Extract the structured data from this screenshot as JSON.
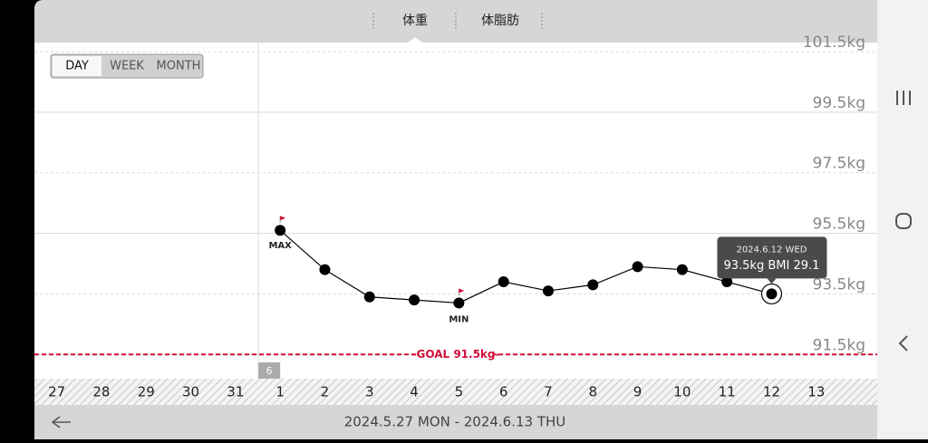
{
  "tabs": [
    "体重",
    "体脂肪"
  ],
  "range_buttons": [
    "DAY",
    "WEEK",
    "MONTH"
  ],
  "footer": {
    "date_range": "2024.5.27 MON - 2024.6.13 THU"
  },
  "chart_data": {
    "type": "line",
    "categories": [
      "27",
      "28",
      "29",
      "30",
      "31",
      "1",
      "2",
      "3",
      "4",
      "5",
      "6",
      "7",
      "8",
      "9",
      "10",
      "11",
      "12",
      "13"
    ],
    "values": [
      null,
      null,
      null,
      null,
      null,
      95.6,
      94.3,
      93.4,
      93.3,
      93.2,
      93.9,
      93.6,
      93.8,
      94.4,
      94.3,
      93.9,
      93.5,
      null
    ],
    "color": "#000000",
    "ylim": [
      90.7,
      101.8
    ],
    "yticks": [
      {
        "value": 91.5,
        "label": "91.5kg"
      },
      {
        "value": 93.5,
        "label": "93.5kg"
      },
      {
        "value": 95.5,
        "label": "95.5kg"
      },
      {
        "value": 97.5,
        "label": "97.5kg"
      },
      {
        "value": 99.5,
        "label": "99.5kg"
      },
      {
        "value": 101.5,
        "label": "101.5kg"
      }
    ],
    "grid": true,
    "max_label": "MAX",
    "min_label": "MIN",
    "month_label": "6",
    "goal": {
      "value": 91.5,
      "label": "-GOAL 91.5kg-",
      "color": "#d0103a"
    },
    "tooltip": {
      "date": "2024.6.12 WED",
      "text": "93.5kg  BMI 29.1"
    }
  }
}
